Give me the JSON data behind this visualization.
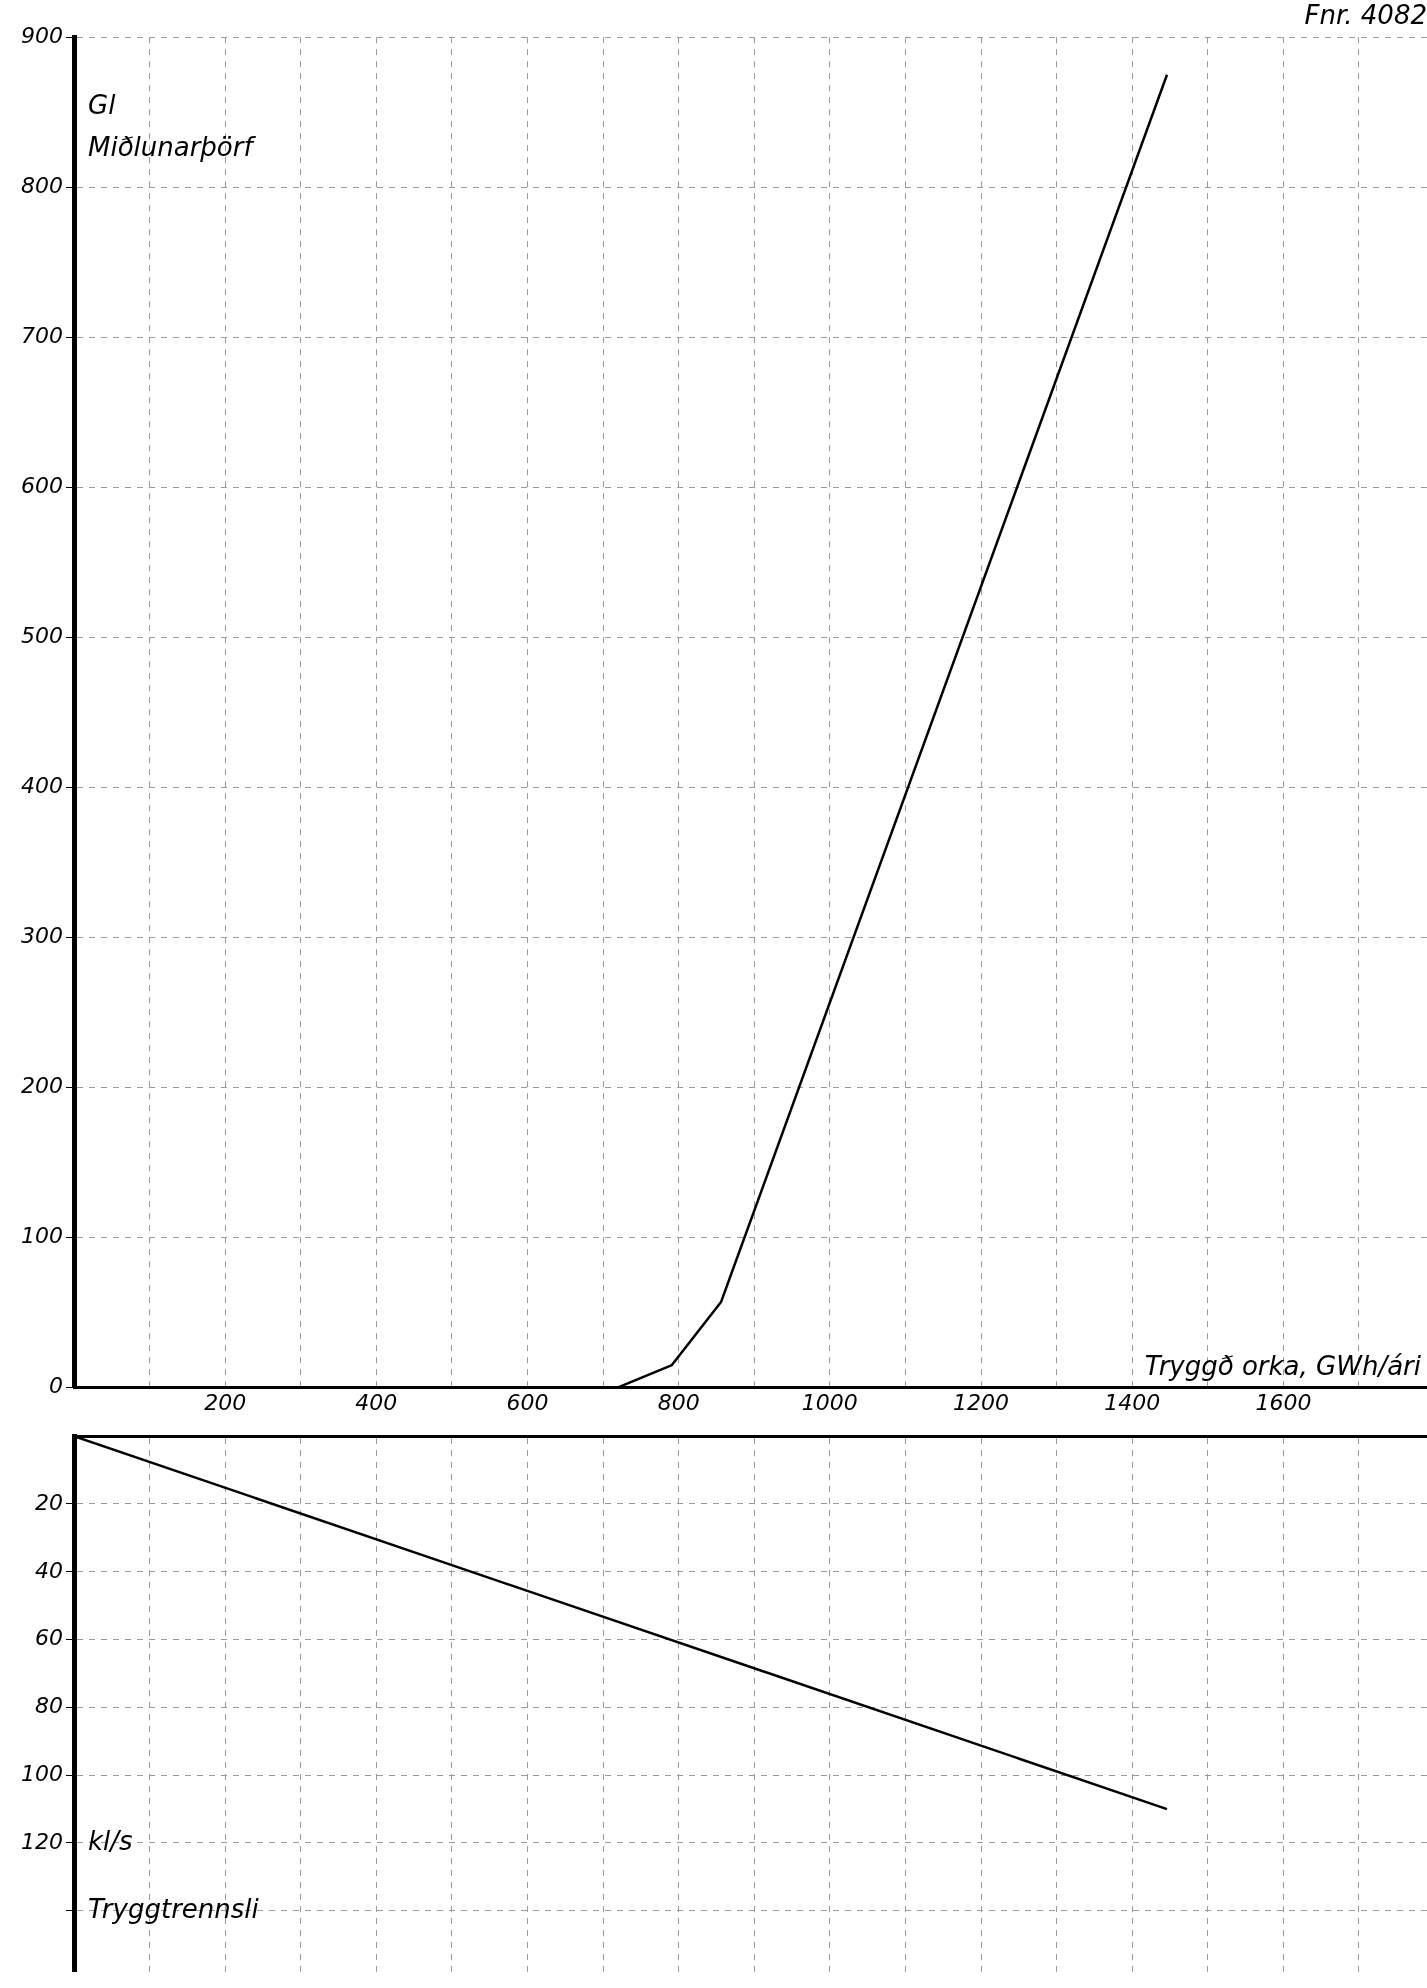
{
  "chart_data": [
    {
      "type": "line",
      "title": "Fnr. 4082",
      "xlabel": "Tryggð orka, GWh/ári",
      "ylabel": "Gl",
      "annotations": [
        "Miðlunarþörf"
      ],
      "series": [
        {
          "color": "#000000",
          "x": [
            719,
            791,
            856,
            1446
          ],
          "values": [
            0,
            15,
            57,
            875
          ]
        }
      ],
      "xlim": [
        0,
        1790
      ],
      "xticks": [
        {
          "value": 0,
          "label": null
        },
        {
          "value": 100,
          "label": null
        },
        200,
        {
          "value": 300,
          "label": null
        },
        400,
        {
          "value": 500,
          "label": null
        },
        600,
        {
          "value": 700,
          "label": null
        },
        800,
        {
          "value": 900,
          "label": null
        },
        1000,
        {
          "value": 1100,
          "label": null
        },
        1200,
        {
          "value": 1300,
          "label": null
        },
        1400,
        {
          "value": 1500,
          "label": null
        },
        1600,
        {
          "value": 1700,
          "label": null
        }
      ],
      "ylim": [
        0,
        900
      ],
      "yticks": [
        0,
        100,
        200,
        300,
        400,
        500,
        600,
        700,
        800,
        900
      ],
      "grid": true,
      "marker": "none",
      "line_style": "solid"
    },
    {
      "type": "line",
      "ylabel": "kl/s",
      "annotations": [
        "Tryggtrennsli"
      ],
      "series": [
        {
          "color": "#000000",
          "x": [
            0,
            1446
          ],
          "values": [
            0,
            110
          ]
        }
      ],
      "xlim": [
        0,
        1790
      ],
      "xticks": [
        {
          "value": 0,
          "label": null
        },
        {
          "value": 100,
          "label": null
        },
        {
          "value": 200,
          "label": null
        },
        {
          "value": 300,
          "label": null
        },
        {
          "value": 400,
          "label": null
        },
        {
          "value": 500,
          "label": null
        },
        {
          "value": 600,
          "label": null
        },
        {
          "value": 700,
          "label": null
        },
        {
          "value": 800,
          "label": null
        },
        {
          "value": 900,
          "label": null
        },
        {
          "value": 1000,
          "label": null
        },
        {
          "value": 1100,
          "label": null
        },
        {
          "value": 1200,
          "label": null
        },
        {
          "value": 1300,
          "label": null
        },
        {
          "value": 1400,
          "label": null
        },
        {
          "value": 1500,
          "label": null
        },
        {
          "value": 1600,
          "label": null
        },
        {
          "value": 1700,
          "label": null
        }
      ],
      "ylim": [
        158,
        0
      ],
      "yticks": [
        20,
        40,
        60,
        80,
        100,
        120,
        {
          "value": 140,
          "label": null
        }
      ],
      "tick_labels": "y",
      "grid": true,
      "marker": "none",
      "line_style": "solid"
    }
  ]
}
